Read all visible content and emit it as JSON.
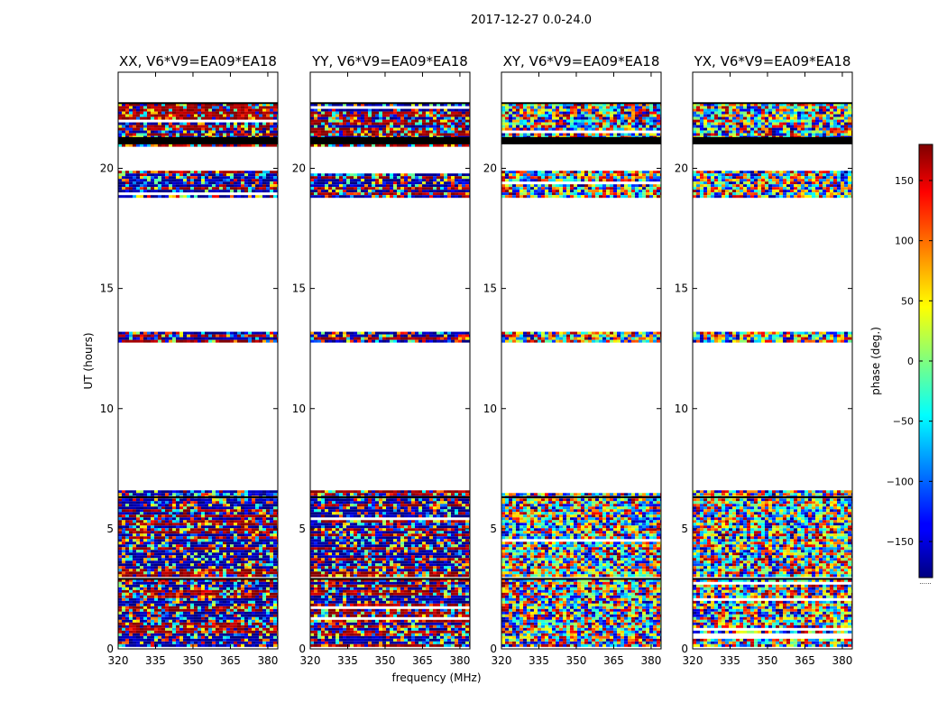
{
  "figure_title": "2017-12-27 0.0-24.0",
  "colorbar": {
    "label": "phase (deg.)",
    "range": [
      -180,
      180
    ],
    "ticks": [
      150,
      100,
      50,
      0,
      -50,
      -100,
      -150
    ],
    "tick_labels": [
      "150",
      "100",
      "50",
      "0",
      "−50",
      "−100",
      "−150"
    ],
    "footer": "......"
  },
  "chart_data": [
    {
      "type": "heatmap",
      "title": "XX, V6*V9=EA09*EA18",
      "xlabel": "",
      "ylabel": "UT (hours)",
      "xlim": [
        320,
        384
      ],
      "ylim": [
        0,
        24
      ],
      "xticks": [
        320,
        335,
        350,
        365,
        380
      ],
      "yticks": [
        0,
        5,
        10,
        15,
        20
      ],
      "zrange": [
        -180,
        180
      ],
      "colormap": "jet",
      "data_bands_hours": [
        [
          0.1,
          2.9
        ],
        [
          3.0,
          6.6
        ],
        [
          12.8,
          13.2
        ],
        [
          18.8,
          19.9
        ],
        [
          20.9,
          22.7
        ]
      ],
      "flagged_black_bands_hours": [
        [
          21.0,
          21.3
        ]
      ]
    },
    {
      "type": "heatmap",
      "title": "YY, V6*V9=EA09*EA18",
      "xlabel": "frequency (MHz)",
      "ylabel": "",
      "xlim": [
        320,
        384
      ],
      "ylim": [
        0,
        24
      ],
      "xticks": [
        320,
        335,
        350,
        365,
        380
      ],
      "yticks": [
        0,
        5,
        10,
        15,
        20
      ],
      "zrange": [
        -180,
        180
      ],
      "colormap": "jet",
      "data_bands_hours": [
        [
          0.1,
          2.9
        ],
        [
          3.0,
          6.6
        ],
        [
          12.8,
          13.2
        ],
        [
          18.8,
          19.9
        ],
        [
          20.9,
          22.7
        ]
      ],
      "flagged_black_bands_hours": [
        [
          21.0,
          21.3
        ]
      ]
    },
    {
      "type": "heatmap",
      "title": "XY, V6*V9=EA09*EA18",
      "xlabel": "",
      "ylabel": "",
      "xlim": [
        320,
        384
      ],
      "ylim": [
        0,
        24
      ],
      "xticks": [
        320,
        335,
        350,
        365,
        380
      ],
      "yticks": [
        0,
        5,
        10,
        15,
        20
      ],
      "zrange": [
        -180,
        180
      ],
      "colormap": "jet",
      "data_bands_hours": [
        [
          0.1,
          2.9
        ],
        [
          3.0,
          6.6
        ],
        [
          12.8,
          13.2
        ],
        [
          18.8,
          19.9
        ],
        [
          20.9,
          22.7
        ]
      ],
      "flagged_black_bands_hours": [
        [
          21.0,
          21.3
        ]
      ]
    },
    {
      "type": "heatmap",
      "title": "YX, V6*V9=EA09*EA18",
      "xlabel": "",
      "ylabel": "",
      "xlim": [
        320,
        384
      ],
      "ylim": [
        0,
        24
      ],
      "xticks": [
        320,
        335,
        350,
        365,
        380
      ],
      "yticks": [
        0,
        5,
        10,
        15,
        20
      ],
      "zrange": [
        -180,
        180
      ],
      "colormap": "jet",
      "data_bands_hours": [
        [
          0.1,
          2.9
        ],
        [
          3.0,
          6.6
        ],
        [
          12.8,
          13.2
        ],
        [
          18.8,
          19.9
        ],
        [
          20.9,
          22.7
        ]
      ],
      "flagged_black_bands_hours": [
        [
          21.0,
          21.3
        ]
      ]
    }
  ]
}
